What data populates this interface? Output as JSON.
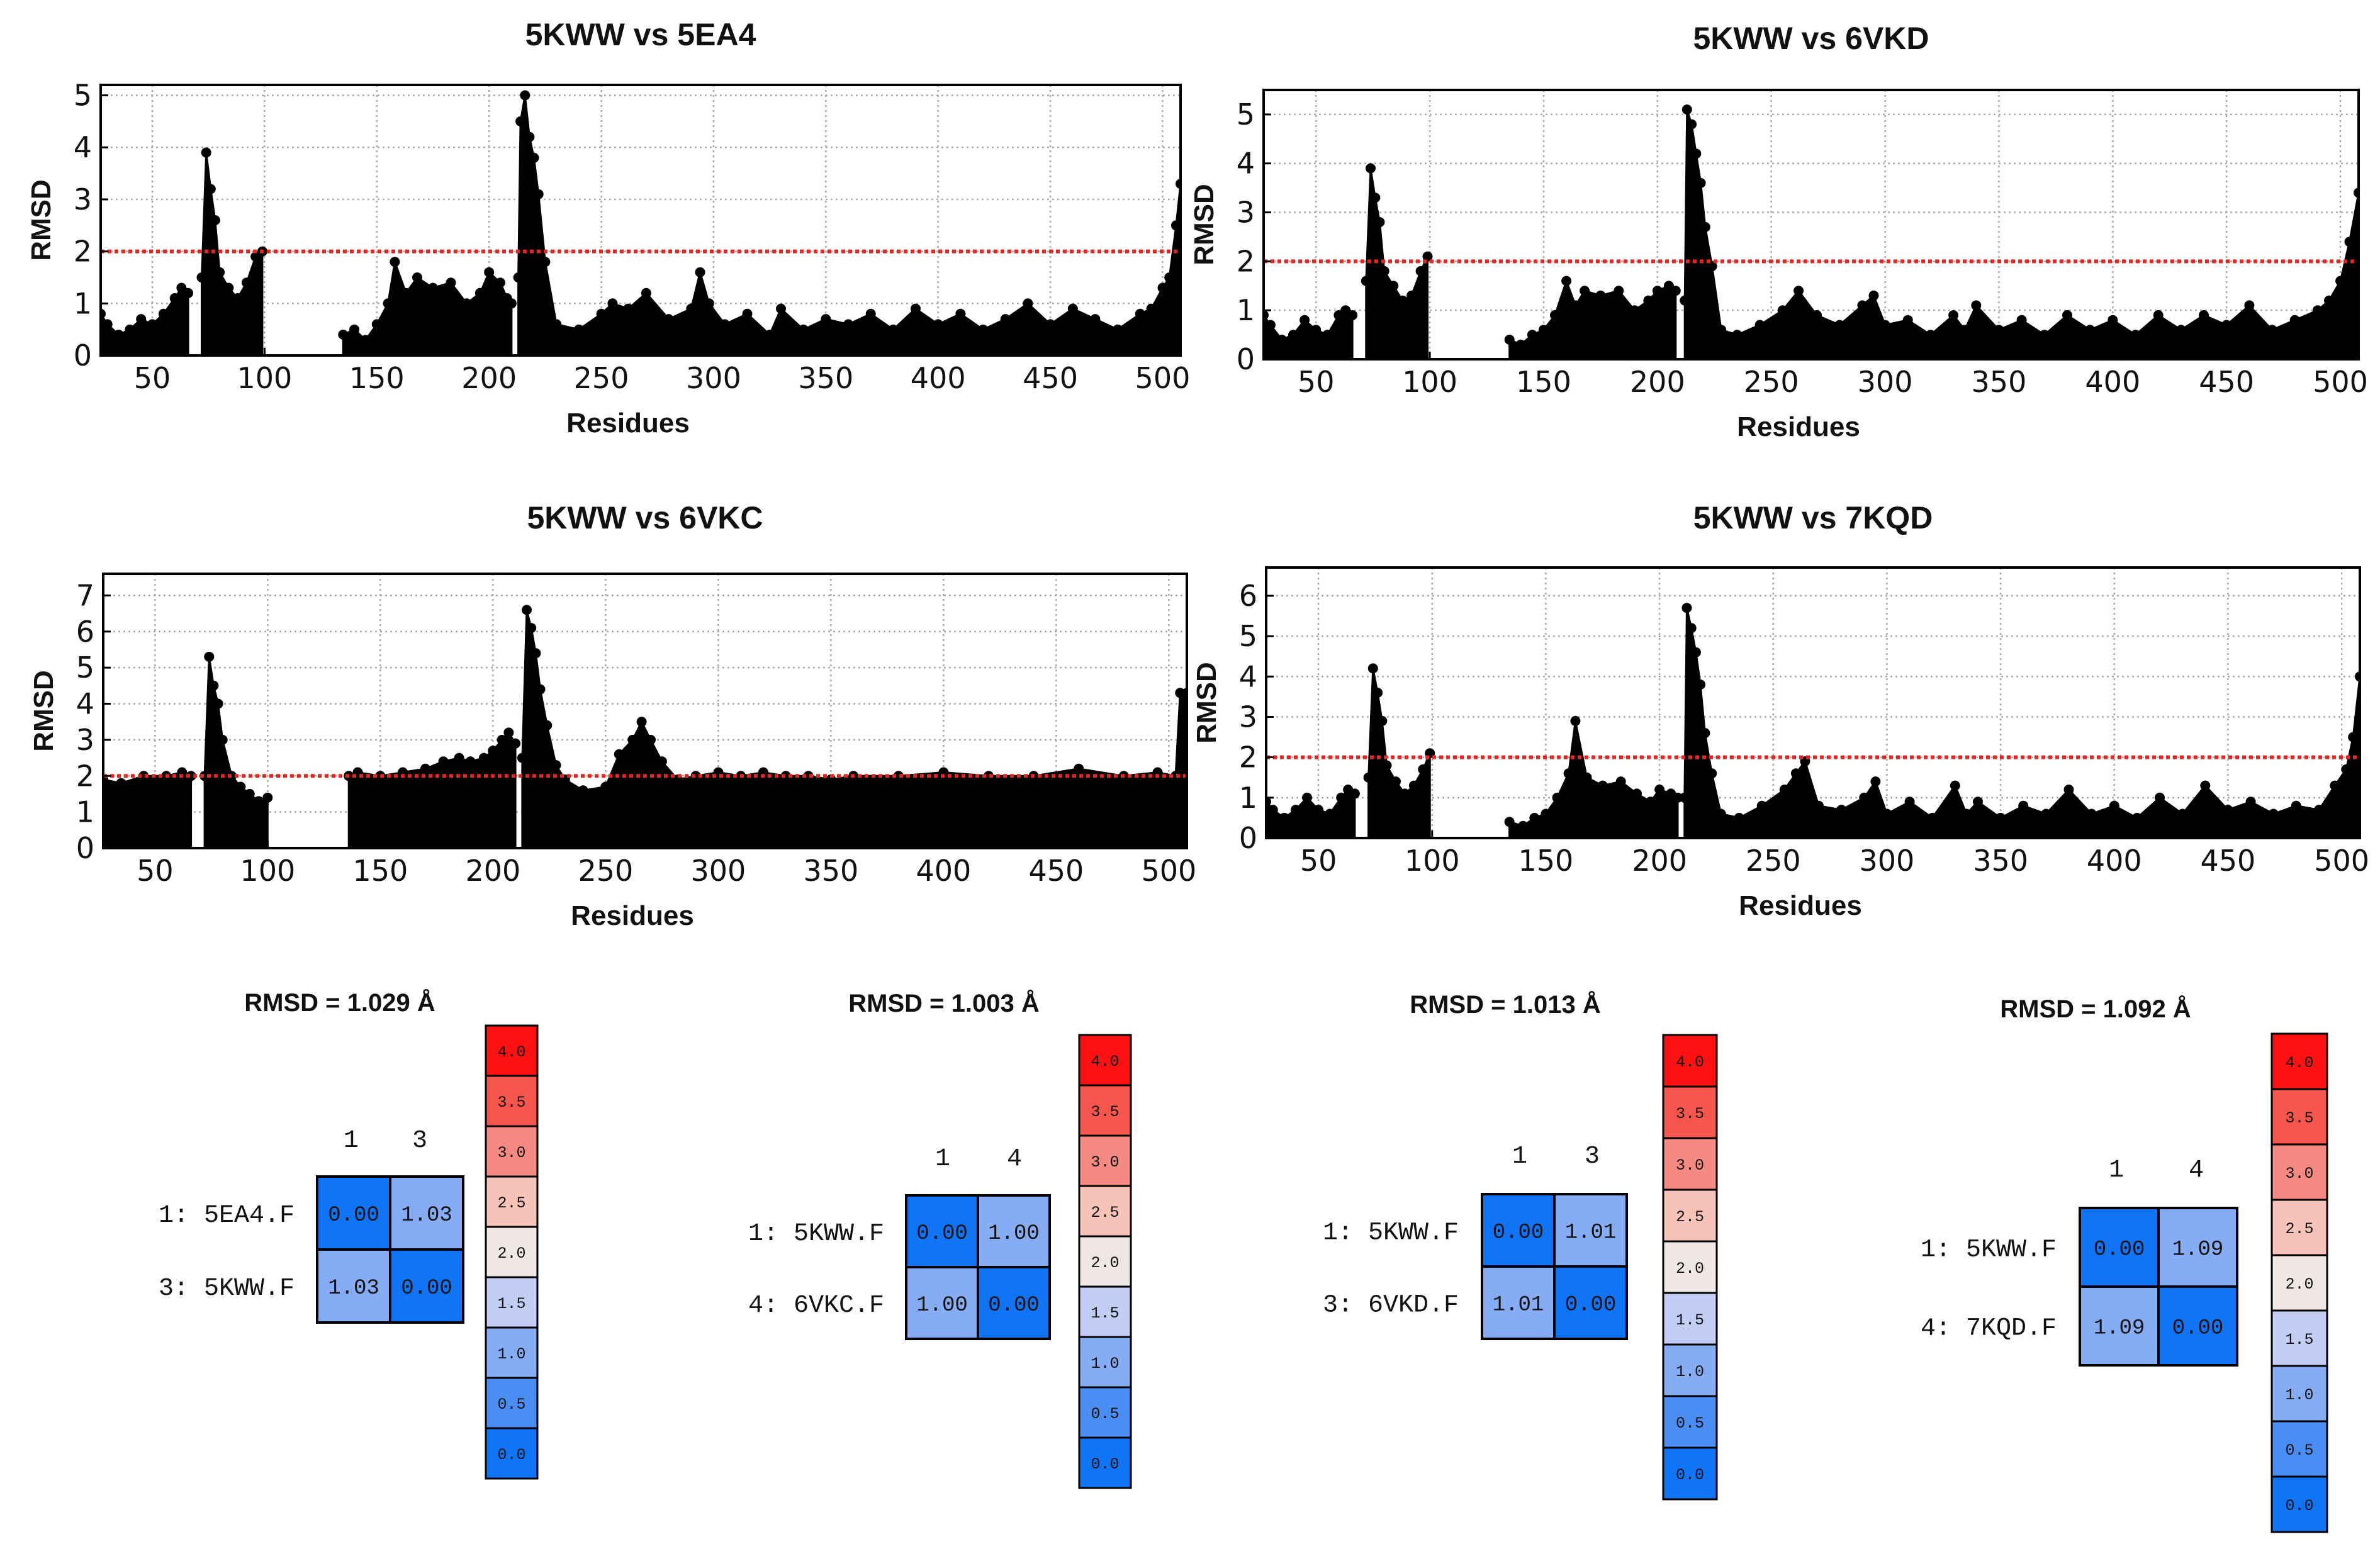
{
  "chart_data": [
    {
      "type": "area",
      "title": "5KWW vs 5EA4",
      "xlabel": "Residues",
      "ylabel": "RMSD",
      "xlim": [
        27,
        508
      ],
      "ylim": [
        0,
        5.2
      ],
      "xticks": [
        50,
        100,
        150,
        200,
        250,
        300,
        350,
        400,
        450,
        500
      ],
      "yticks": [
        0,
        1,
        2,
        3,
        4,
        5
      ],
      "threshold": 2,
      "grid": true,
      "segments": [
        {
          "x": [
            27,
            30,
            35,
            40,
            45,
            50,
            55,
            60,
            63,
            66
          ],
          "y": [
            0.8,
            0.6,
            0.4,
            0.5,
            0.7,
            0.6,
            0.8,
            1.1,
            1.3,
            1.2
          ]
        },
        {
          "x": [
            72,
            74,
            76,
            78,
            80,
            84,
            88,
            92,
            96,
            99
          ],
          "y": [
            1.5,
            3.9,
            3.2,
            2.6,
            1.6,
            1.3,
            1.1,
            1.4,
            1.9,
            2.0
          ]
        },
        {
          "x": [
            135,
            140,
            145,
            150,
            155,
            158,
            163,
            168,
            175,
            183,
            190,
            196,
            200,
            205,
            208,
            210
          ],
          "y": [
            0.4,
            0.5,
            0.3,
            0.6,
            1.0,
            1.8,
            1.2,
            1.5,
            1.3,
            1.4,
            1.0,
            1.2,
            1.6,
            1.4,
            1.1,
            1.0
          ]
        },
        {
          "x": [
            213,
            214,
            216,
            218,
            220,
            222,
            225,
            230,
            240,
            250,
            255,
            262,
            270,
            280,
            290,
            294,
            298,
            305,
            315,
            325,
            330,
            340,
            350,
            360,
            370,
            380,
            390,
            400,
            410,
            420,
            430,
            440,
            450,
            460,
            470,
            480,
            490,
            495,
            500,
            503,
            506,
            508
          ],
          "y": [
            1.5,
            4.5,
            5.0,
            4.2,
            3.8,
            3.1,
            1.8,
            0.6,
            0.5,
            0.8,
            1.0,
            0.9,
            1.2,
            0.7,
            0.9,
            1.6,
            1.0,
            0.6,
            0.8,
            0.4,
            0.9,
            0.5,
            0.7,
            0.6,
            0.8,
            0.5,
            0.9,
            0.6,
            0.8,
            0.5,
            0.7,
            1.0,
            0.6,
            0.9,
            0.7,
            0.5,
            0.8,
            0.9,
            1.3,
            1.5,
            2.5,
            3.3
          ]
        }
      ]
    },
    {
      "type": "area",
      "title": "5KWW vs 6VKD",
      "xlabel": "Residues",
      "ylabel": "RMSD",
      "xlim": [
        27,
        508
      ],
      "ylim": [
        0,
        5.5
      ],
      "xticks": [
        50,
        100,
        150,
        200,
        250,
        300,
        350,
        400,
        450,
        500
      ],
      "yticks": [
        0,
        1,
        2,
        3,
        4,
        5
      ],
      "threshold": 2,
      "grid": true,
      "segments": [
        {
          "x": [
            27,
            30,
            35,
            40,
            45,
            50,
            55,
            60,
            63,
            66
          ],
          "y": [
            0.9,
            0.7,
            0.4,
            0.5,
            0.8,
            0.6,
            0.5,
            0.9,
            1.0,
            0.9
          ]
        },
        {
          "x": [
            72,
            74,
            76,
            78,
            80,
            84,
            88,
            92,
            96,
            99
          ],
          "y": [
            1.6,
            3.9,
            3.3,
            2.8,
            1.8,
            1.5,
            1.2,
            1.3,
            1.8,
            2.1
          ]
        },
        {
          "x": [
            135,
            140,
            145,
            150,
            155,
            160,
            164,
            168,
            175,
            183,
            190,
            196,
            200,
            205,
            208
          ],
          "y": [
            0.4,
            0.3,
            0.5,
            0.6,
            0.9,
            1.6,
            1.1,
            1.4,
            1.3,
            1.4,
            1.0,
            1.2,
            1.4,
            1.5,
            1.4
          ]
        },
        {
          "x": [
            212,
            213,
            215,
            217,
            219,
            221,
            224,
            228,
            235,
            245,
            255,
            262,
            270,
            280,
            290,
            295,
            300,
            310,
            320,
            330,
            335,
            340,
            350,
            360,
            370,
            380,
            390,
            400,
            410,
            420,
            430,
            440,
            450,
            460,
            470,
            480,
            490,
            495,
            500,
            504,
            508
          ],
          "y": [
            1.2,
            5.1,
            4.8,
            4.2,
            3.6,
            2.7,
            1.9,
            0.6,
            0.5,
            0.7,
            1.0,
            1.4,
            0.9,
            0.7,
            1.1,
            1.3,
            0.7,
            0.8,
            0.5,
            0.9,
            0.6,
            1.1,
            0.6,
            0.8,
            0.5,
            0.9,
            0.6,
            0.8,
            0.5,
            0.9,
            0.6,
            0.9,
            0.7,
            1.1,
            0.6,
            0.8,
            1.0,
            1.2,
            1.6,
            2.4,
            3.4
          ]
        }
      ]
    },
    {
      "type": "area",
      "title": "5KWW vs 6VKC",
      "xlabel": "Residues",
      "ylabel": "RMSD",
      "xlim": [
        27,
        508
      ],
      "ylim": [
        0,
        7.6
      ],
      "xticks": [
        50,
        100,
        150,
        200,
        250,
        300,
        350,
        400,
        450,
        500
      ],
      "yticks": [
        0,
        1,
        2,
        3,
        4,
        5,
        6,
        7
      ],
      "threshold": 2,
      "grid": true,
      "segments": [
        {
          "x": [
            27,
            35,
            45,
            55,
            62,
            66
          ],
          "y": [
            1.9,
            1.8,
            2.0,
            2.0,
            2.1,
            2.0
          ]
        },
        {
          "x": [
            72,
            74,
            76,
            78,
            80,
            84,
            88,
            92,
            96,
            100
          ],
          "y": [
            2.0,
            5.3,
            4.5,
            4.0,
            3.0,
            2.0,
            1.7,
            1.5,
            1.3,
            1.4
          ]
        },
        {
          "x": [
            136,
            140,
            150,
            160,
            170,
            178,
            185,
            190,
            196,
            200,
            204,
            207,
            210
          ],
          "y": [
            2.0,
            2.1,
            2.0,
            2.1,
            2.2,
            2.4,
            2.5,
            2.4,
            2.5,
            2.7,
            3.0,
            3.2,
            2.9
          ]
        },
        {
          "x": [
            213,
            215,
            217,
            219,
            221,
            224,
            228,
            232,
            240,
            250,
            256,
            262,
            266,
            270,
            275,
            282,
            290,
            300,
            310,
            320,
            330,
            340,
            350,
            360,
            380,
            400,
            420,
            440,
            460,
            480,
            495,
            503,
            505,
            508
          ],
          "y": [
            2.5,
            6.6,
            6.1,
            5.4,
            4.4,
            3.4,
            2.3,
            1.9,
            1.6,
            1.7,
            2.6,
            3.0,
            3.5,
            3.0,
            2.4,
            1.9,
            2.0,
            2.1,
            2.0,
            2.1,
            2.0,
            2.0,
            1.9,
            2.0,
            2.0,
            2.1,
            2.0,
            2.0,
            2.2,
            2.0,
            2.1,
            2.0,
            4.3,
            4.3
          ]
        }
      ]
    },
    {
      "type": "area",
      "title": "5KWW vs 7KQD",
      "xlabel": "Residues",
      "ylabel": "RMSD",
      "xlim": [
        27,
        508
      ],
      "ylim": [
        0,
        6.7
      ],
      "xticks": [
        50,
        100,
        150,
        200,
        250,
        300,
        350,
        400,
        450,
        500
      ],
      "yticks": [
        0,
        1,
        2,
        3,
        4,
        5,
        6
      ],
      "threshold": 2,
      "grid": true,
      "segments": [
        {
          "x": [
            27,
            30,
            35,
            40,
            45,
            50,
            55,
            60,
            63,
            66
          ],
          "y": [
            0.9,
            0.7,
            0.5,
            0.7,
            1.0,
            0.7,
            0.6,
            1.0,
            1.2,
            1.1
          ]
        },
        {
          "x": [
            72,
            74,
            76,
            78,
            80,
            84,
            88,
            92,
            96,
            99
          ],
          "y": [
            1.5,
            4.2,
            3.6,
            2.9,
            1.8,
            1.4,
            1.1,
            1.3,
            1.7,
            2.1
          ]
        },
        {
          "x": [
            134,
            140,
            145,
            150,
            155,
            160,
            163,
            168,
            175,
            183,
            190,
            196,
            200,
            205,
            208
          ],
          "y": [
            0.4,
            0.3,
            0.5,
            0.6,
            1.0,
            1.6,
            2.9,
            1.5,
            1.3,
            1.4,
            1.1,
            0.9,
            1.2,
            1.1,
            1.0
          ]
        },
        {
          "x": [
            211,
            212,
            214,
            216,
            218,
            220,
            223,
            227,
            235,
            245,
            255,
            260,
            264,
            270,
            280,
            290,
            295,
            300,
            310,
            320,
            330,
            335,
            340,
            350,
            360,
            370,
            380,
            390,
            400,
            410,
            420,
            430,
            440,
            450,
            460,
            470,
            480,
            490,
            497,
            502,
            505,
            508
          ],
          "y": [
            1.0,
            5.7,
            5.2,
            4.6,
            3.8,
            2.6,
            1.6,
            0.6,
            0.5,
            0.8,
            1.2,
            1.6,
            1.9,
            0.8,
            0.7,
            1.0,
            1.4,
            0.6,
            0.9,
            0.5,
            1.3,
            0.6,
            0.9,
            0.5,
            0.8,
            0.6,
            1.2,
            0.6,
            0.8,
            0.5,
            1.0,
            0.6,
            1.3,
            0.7,
            0.9,
            0.6,
            0.8,
            0.7,
            1.3,
            1.7,
            2.5,
            4.0
          ]
        }
      ]
    },
    {
      "type": "heatmap",
      "summary": "RMSD = 1.029 Å",
      "col_labels": [
        "1",
        "3"
      ],
      "row_labels": [
        "1:  5EA4.F",
        "3:  5KWW.F"
      ],
      "values": [
        [
          "0.00",
          "1.03"
        ],
        [
          "1.03",
          "0.00"
        ]
      ],
      "colorbar": [
        "4.0",
        "3.5",
        "3.0",
        "2.5",
        "2.0",
        "1.5",
        "1.0",
        "0.5",
        "0.0"
      ]
    },
    {
      "type": "heatmap",
      "summary": "RMSD = 1.003 Å",
      "col_labels": [
        "1",
        "4"
      ],
      "row_labels": [
        "1:  5KWW.F",
        "4:  6VKC.F"
      ],
      "values": [
        [
          "0.00",
          "1.00"
        ],
        [
          "1.00",
          "0.00"
        ]
      ],
      "colorbar": [
        "4.0",
        "3.5",
        "3.0",
        "2.5",
        "2.0",
        "1.5",
        "1.0",
        "0.5",
        "0.0"
      ]
    },
    {
      "type": "heatmap",
      "summary": "RMSD = 1.013 Å",
      "col_labels": [
        "1",
        "3"
      ],
      "row_labels": [
        "1:  5KWW.F",
        "3:  6VKD.F"
      ],
      "values": [
        [
          "0.00",
          "1.01"
        ],
        [
          "1.01",
          "0.00"
        ]
      ],
      "colorbar": [
        "4.0",
        "3.5",
        "3.0",
        "2.5",
        "2.0",
        "1.5",
        "1.0",
        "0.5",
        "0.0"
      ]
    },
    {
      "type": "heatmap",
      "summary": "RMSD = 1.092 Å",
      "col_labels": [
        "1",
        "4"
      ],
      "row_labels": [
        "1:  5KWW.F",
        "4:  7KQD.F"
      ],
      "values": [
        [
          "0.00",
          "1.09"
        ],
        [
          "1.09",
          "0.00"
        ]
      ],
      "colorbar": [
        "4.0",
        "3.5",
        "3.0",
        "2.5",
        "2.0",
        "1.5",
        "1.0",
        "0.5",
        "0.0"
      ]
    }
  ],
  "colors": {
    "cbar": [
      "#ff1111",
      "#f6564c",
      "#f48a82",
      "#f7c2b7",
      "#efe7e4",
      "#c2cdf3",
      "#86acf3",
      "#4a8ef3",
      "#0f74f5"
    ],
    "diag": "#0f74f5",
    "off": "#86acf3",
    "threshold": "#e8261f",
    "fill": "#000000",
    "grid": "#aaaaaa"
  }
}
